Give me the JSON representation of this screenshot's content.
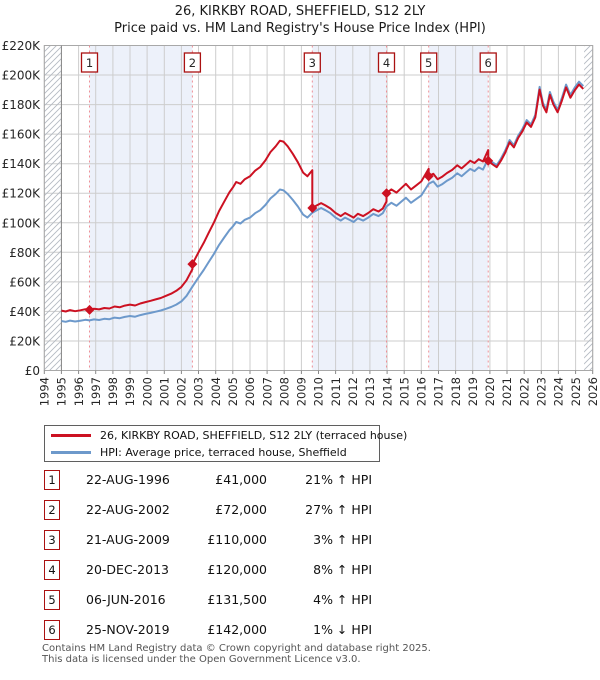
{
  "title": {
    "line1": "26, KIRKBY ROAD, SHEFFIELD, S12 2LY",
    "line2": "Price paid vs. HM Land Registry's House Price Index (HPI)"
  },
  "chart_data": {
    "type": "line",
    "title": "26, KIRKBY ROAD, SHEFFIELD, S12 2LY — Price paid vs. HM Land Registry's House Price Index (HPI)",
    "x_axis": {
      "start": 1994,
      "end": 2026,
      "tick_years": [
        1994,
        1995,
        1996,
        1997,
        1998,
        1999,
        2000,
        2001,
        2002,
        2003,
        2004,
        2005,
        2006,
        2007,
        2008,
        2009,
        2010,
        2011,
        2012,
        2013,
        2014,
        2015,
        2016,
        2017,
        2018,
        2019,
        2020,
        2021,
        2022,
        2023,
        2024,
        2025,
        2026
      ]
    },
    "y_axis": {
      "min": 0,
      "max": 220000,
      "tick_step": 20000,
      "tick_labels": [
        "£0",
        "£20K",
        "£40K",
        "£60K",
        "£80K",
        "£100K",
        "£120K",
        "£140K",
        "£160K",
        "£180K",
        "£200K",
        "£220K"
      ]
    },
    "hatch_regions": [
      [
        1994,
        1995
      ],
      [
        2025.5,
        2026
      ]
    ],
    "shaded_spans": [
      [
        1996.64,
        2002.64
      ],
      [
        2009.64,
        2013.97
      ],
      [
        2016.43,
        2019.9
      ]
    ],
    "series": [
      {
        "name": "26, KIRKBY ROAD, SHEFFIELD, S12 2LY (terraced house)",
        "color": "#cc1122",
        "derivation": "price_paid_scaled_by_hpi_between_sales"
      },
      {
        "name": "HPI: Average price, terraced house, Sheffield",
        "color": "#6d99cb",
        "points_year_gbp_thousands": [
          [
            1995.0,
            33.5
          ],
          [
            1995.25,
            33.0
          ],
          [
            1995.5,
            33.8
          ],
          [
            1995.8,
            33.2
          ],
          [
            1996.1,
            33.7
          ],
          [
            1996.4,
            34.3
          ],
          [
            1996.64,
            33.9
          ],
          [
            1996.9,
            34.6
          ],
          [
            1997.2,
            34.2
          ],
          [
            1997.5,
            35.0
          ],
          [
            1997.8,
            34.7
          ],
          [
            1998.1,
            35.8
          ],
          [
            1998.4,
            35.4
          ],
          [
            1998.7,
            36.3
          ],
          [
            1999.0,
            36.9
          ],
          [
            1999.3,
            36.4
          ],
          [
            1999.6,
            37.5
          ],
          [
            1999.9,
            38.3
          ],
          [
            2000.2,
            39.0
          ],
          [
            2000.5,
            39.8
          ],
          [
            2000.8,
            40.6
          ],
          [
            2001.1,
            41.8
          ],
          [
            2001.4,
            43.0
          ],
          [
            2001.7,
            44.6
          ],
          [
            2002.0,
            46.8
          ],
          [
            2002.3,
            50.5
          ],
          [
            2002.64,
            56.7
          ],
          [
            2003.0,
            63.0
          ],
          [
            2003.3,
            68.0
          ],
          [
            2003.6,
            73.5
          ],
          [
            2003.9,
            79.0
          ],
          [
            2004.2,
            85.0
          ],
          [
            2004.5,
            90.0
          ],
          [
            2004.8,
            95.0
          ],
          [
            2005.0,
            97.5
          ],
          [
            2005.2,
            100.5
          ],
          [
            2005.45,
            99.5
          ],
          [
            2005.7,
            102.0
          ],
          [
            2006.0,
            103.5
          ],
          [
            2006.3,
            106.5
          ],
          [
            2006.6,
            108.5
          ],
          [
            2006.9,
            112.0
          ],
          [
            2007.2,
            116.5
          ],
          [
            2007.5,
            119.5
          ],
          [
            2007.75,
            122.5
          ],
          [
            2007.95,
            122.0
          ],
          [
            2008.2,
            119.5
          ],
          [
            2008.5,
            115.5
          ],
          [
            2008.8,
            111.0
          ],
          [
            2009.1,
            105.5
          ],
          [
            2009.35,
            103.5
          ],
          [
            2009.64,
            106.8
          ],
          [
            2009.9,
            108.5
          ],
          [
            2010.15,
            110.0
          ],
          [
            2010.4,
            108.5
          ],
          [
            2010.7,
            106.5
          ],
          [
            2011.0,
            103.5
          ],
          [
            2011.3,
            101.5
          ],
          [
            2011.55,
            103.5
          ],
          [
            2011.8,
            102.0
          ],
          [
            2012.05,
            100.5
          ],
          [
            2012.3,
            103.0
          ],
          [
            2012.6,
            101.5
          ],
          [
            2012.9,
            103.5
          ],
          [
            2013.2,
            106.0
          ],
          [
            2013.5,
            104.5
          ],
          [
            2013.75,
            106.5
          ],
          [
            2013.97,
            111.1
          ],
          [
            2014.25,
            113.5
          ],
          [
            2014.55,
            111.5
          ],
          [
            2014.85,
            114.5
          ],
          [
            2015.1,
            117.0
          ],
          [
            2015.4,
            113.5
          ],
          [
            2015.7,
            116.0
          ],
          [
            2016.0,
            118.5
          ],
          [
            2016.43,
            126.4
          ],
          [
            2016.7,
            128.0
          ],
          [
            2016.95,
            124.5
          ],
          [
            2017.2,
            126.0
          ],
          [
            2017.5,
            128.5
          ],
          [
            2017.8,
            130.5
          ],
          [
            2018.1,
            133.5
          ],
          [
            2018.35,
            131.5
          ],
          [
            2018.6,
            134.0
          ],
          [
            2018.85,
            136.5
          ],
          [
            2019.1,
            135.0
          ],
          [
            2019.35,
            137.5
          ],
          [
            2019.6,
            136.0
          ],
          [
            2019.9,
            143.4
          ],
          [
            2020.15,
            141.0
          ],
          [
            2020.4,
            139.0
          ],
          [
            2020.65,
            143.5
          ],
          [
            2020.9,
            149.0
          ],
          [
            2021.15,
            156.0
          ],
          [
            2021.4,
            152.5
          ],
          [
            2021.65,
            159.0
          ],
          [
            2021.9,
            163.5
          ],
          [
            2022.15,
            169.5
          ],
          [
            2022.4,
            166.5
          ],
          [
            2022.65,
            173.0
          ],
          [
            2022.9,
            192.0
          ],
          [
            2023.1,
            181.0
          ],
          [
            2023.3,
            176.5
          ],
          [
            2023.5,
            188.5
          ],
          [
            2023.7,
            182.0
          ],
          [
            2023.95,
            176.5
          ],
          [
            2024.2,
            184.5
          ],
          [
            2024.45,
            193.5
          ],
          [
            2024.7,
            186.5
          ],
          [
            2024.95,
            191.5
          ],
          [
            2025.2,
            195.5
          ],
          [
            2025.45,
            192.5
          ]
        ]
      }
    ],
    "sales": [
      {
        "n": "1",
        "date": "22-AUG-1996",
        "year": 1996.64,
        "price_gbp": 41000,
        "price_label": "£41,000",
        "vs_hpi": "21% ↑ HPI"
      },
      {
        "n": "2",
        "date": "22-AUG-2002",
        "year": 2002.64,
        "price_gbp": 72000,
        "price_label": "£72,000",
        "vs_hpi": "27% ↑ HPI"
      },
      {
        "n": "3",
        "date": "21-AUG-2009",
        "year": 2009.64,
        "price_gbp": 110000,
        "price_label": "£110,000",
        "vs_hpi": "3% ↑ HPI"
      },
      {
        "n": "4",
        "date": "20-DEC-2013",
        "year": 2013.97,
        "price_gbp": 120000,
        "price_label": "£120,000",
        "vs_hpi": "8% ↑ HPI"
      },
      {
        "n": "5",
        "date": "06-JUN-2016",
        "year": 2016.43,
        "price_gbp": 131500,
        "price_label": "£131,500",
        "vs_hpi": "4% ↑ HPI"
      },
      {
        "n": "6",
        "date": "25-NOV-2019",
        "year": 2019.9,
        "price_gbp": 142000,
        "price_label": "£142,000",
        "vs_hpi": "1% ↓ HPI"
      }
    ],
    "legend_position": "below-chart"
  },
  "colors": {
    "property_line": "#cc1122",
    "hpi_line": "#6d99cb",
    "sale_marker": "#cc1122",
    "sale_dashed_line": "#ef8f96",
    "sale_number_box_border": "#aa1111",
    "shaded_band": "#edf1fa",
    "grid": "#cdcdcd",
    "plot_border": "#a8a8a8",
    "data_start_spine": "#888888",
    "hatch": "#b4bac2"
  },
  "footer": {
    "line1": "Contains HM Land Registry data © Crown copyright and database right 2025.",
    "line2": "This data is licensed under the Open Government Licence v3.0."
  }
}
